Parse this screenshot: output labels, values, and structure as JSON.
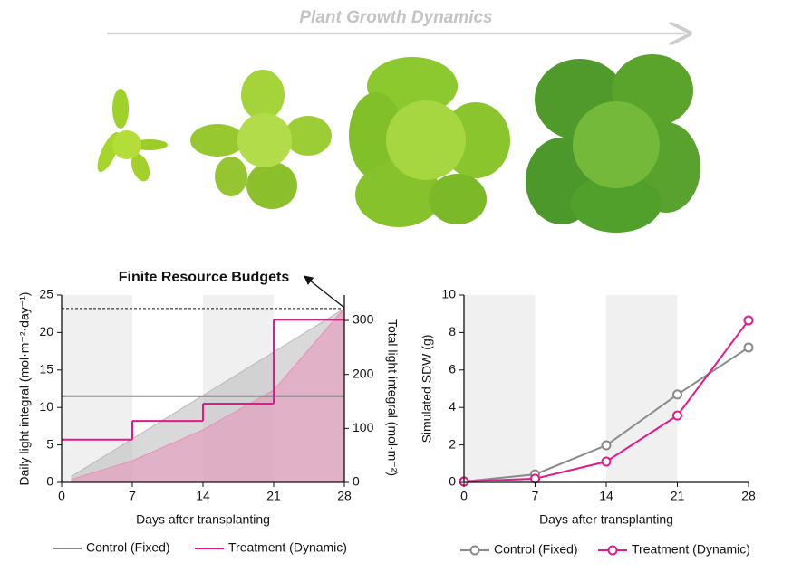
{
  "header": {
    "title": "Plant Growth Dynamics"
  },
  "chart_data": [
    {
      "type": "line",
      "annotations": [
        "Finite Resource Budgets"
      ],
      "xlabel": "Days after transplanting",
      "ylabel": "Daily light integral (mol·m⁻²·day⁻¹)",
      "y2label": "Total light integral (mol·m⁻²)",
      "xlim": [
        0,
        28
      ],
      "xticks": [
        0,
        7,
        14,
        21,
        28
      ],
      "ylim": [
        0,
        25
      ],
      "yticks": [
        0,
        5,
        10,
        15,
        20,
        25
      ],
      "y2lim": [
        0,
        347
      ],
      "y2ticks": [
        0,
        100,
        200,
        300
      ],
      "bands": [
        [
          0,
          7
        ],
        [
          14,
          21
        ]
      ],
      "hlines": [
        {
          "value": 322,
          "axis": "y2"
        }
      ],
      "series": [
        {
          "draw": "area",
          "axis": "y2",
          "color": "#b9b9b9",
          "x": [
            1,
            7,
            14,
            21,
            28
          ],
          "values": [
            11.5,
            80.5,
            161,
            241.5,
            322
          ]
        },
        {
          "draw": "area",
          "axis": "y2",
          "color": "#e690b8",
          "x": [
            1,
            7,
            14,
            21,
            28
          ],
          "values": [
            5.7,
            40,
            97.4,
            170.9,
            322.7
          ]
        },
        {
          "draw": "step",
          "name": "Control (Fixed)",
          "color": "#8a8a8a",
          "x": [
            0
          ],
          "values": [
            11.5
          ]
        },
        {
          "draw": "step",
          "name": "Treatment (Dynamic)",
          "color": "#e5198a",
          "x": [
            0,
            7,
            14,
            21
          ],
          "values": [
            5.7,
            8.2,
            10.5,
            21.7
          ]
        }
      ]
    },
    {
      "type": "line",
      "xlabel": "Days after transplanting",
      "ylabel": "Simulated SDW (g)",
      "xlim": [
        0,
        28
      ],
      "xticks": [
        0,
        7,
        14,
        21,
        28
      ],
      "ylim": [
        0,
        10
      ],
      "yticks": [
        0,
        2,
        4,
        6,
        8,
        10
      ],
      "bands": [
        [
          0,
          7
        ],
        [
          14,
          21
        ]
      ],
      "series": [
        {
          "draw": "line",
          "marker": "circle",
          "name": "Control (Fixed)",
          "color": "#8a8a8a",
          "x": [
            0,
            7,
            14,
            21,
            28
          ],
          "values": [
            0.05,
            0.43,
            1.98,
            4.69,
            7.2
          ]
        },
        {
          "draw": "line",
          "marker": "circle",
          "name": "Treatment (Dynamic)",
          "color": "#e5198a",
          "x": [
            0,
            7,
            14,
            21,
            28
          ],
          "values": [
            0.05,
            0.2,
            1.11,
            3.57,
            8.65
          ]
        }
      ]
    }
  ]
}
